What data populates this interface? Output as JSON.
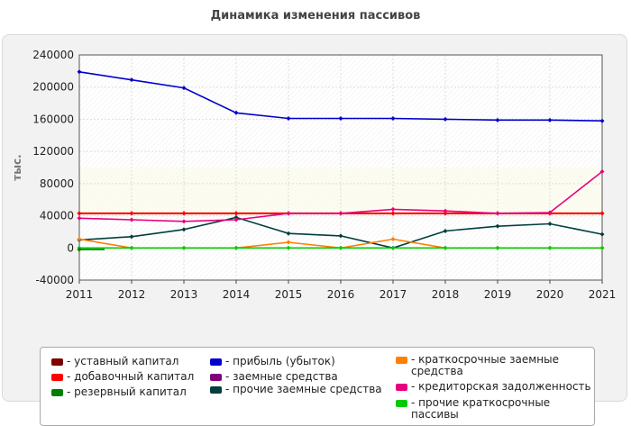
{
  "chart_data": {
    "type": "line",
    "title": "Динамика изменения пассивов",
    "xlabel": "",
    "ylabel": "тыс.",
    "x": [
      2011,
      2012,
      2013,
      2014,
      2015,
      2016,
      2017,
      2018,
      2019,
      2020,
      2021
    ],
    "ylim": [
      -40000,
      240000
    ],
    "y_ticks": [
      "-40000",
      "0",
      "40000",
      "80000",
      "120000",
      "160000",
      "200000",
      "240000"
    ],
    "x_ticks": [
      "2011",
      "2012",
      "2013",
      "2014",
      "2015",
      "2016",
      "2017",
      "2018",
      "2019",
      "2020",
      "2021"
    ],
    "grid": true,
    "legend_position": "bottom",
    "series": [
      {
        "name": "- уставный капитал",
        "color": "#7f0000",
        "values": [
          43000,
          43000,
          43000,
          43000,
          43000,
          43000,
          43000,
          43000,
          43000,
          43000,
          43000
        ]
      },
      {
        "name": "- добавочный капитал",
        "color": "#ff0000",
        "values": [
          43000,
          43000,
          43000,
          43000,
          43000,
          43000,
          43000,
          43000,
          43000,
          43000,
          43000
        ]
      },
      {
        "name": "- резервный капитал",
        "color": "#007f00",
        "values": [
          -2000,
          null,
          null,
          null,
          null,
          null,
          null,
          null,
          null,
          null,
          null
        ]
      },
      {
        "name": "- прибыль (убыток)",
        "color": "#0000cc",
        "values": [
          219000,
          209000,
          199000,
          168000,
          161000,
          161000,
          161000,
          160000,
          159000,
          159000,
          158000
        ]
      },
      {
        "name": "- заемные средства",
        "color": "#7f007f",
        "values": [
          null,
          null,
          null,
          null,
          null,
          null,
          null,
          null,
          null,
          null,
          null
        ]
      },
      {
        "name": "- прочие заемные средства",
        "color": "#003f3f",
        "values": [
          10000,
          14000,
          23000,
          38000,
          18000,
          15000,
          0,
          21000,
          27000,
          30000,
          17000
        ]
      },
      {
        "name": "- краткосрочные заемные средства",
        "color": "#ff7f00",
        "values": [
          11000,
          0,
          0,
          0,
          7000,
          0,
          11000,
          0,
          0,
          0,
          0
        ]
      },
      {
        "name": "- кредиторская задолженность",
        "color": "#e8007f",
        "values": [
          37000,
          35000,
          33000,
          35000,
          43000,
          43000,
          48000,
          46000,
          43000,
          44000,
          95000
        ]
      },
      {
        "name": "- прочие краткосрочные пассивы",
        "color": "#00cc00",
        "values": [
          0,
          0,
          0,
          0,
          0,
          0,
          0,
          0,
          0,
          0,
          0
        ]
      }
    ]
  }
}
